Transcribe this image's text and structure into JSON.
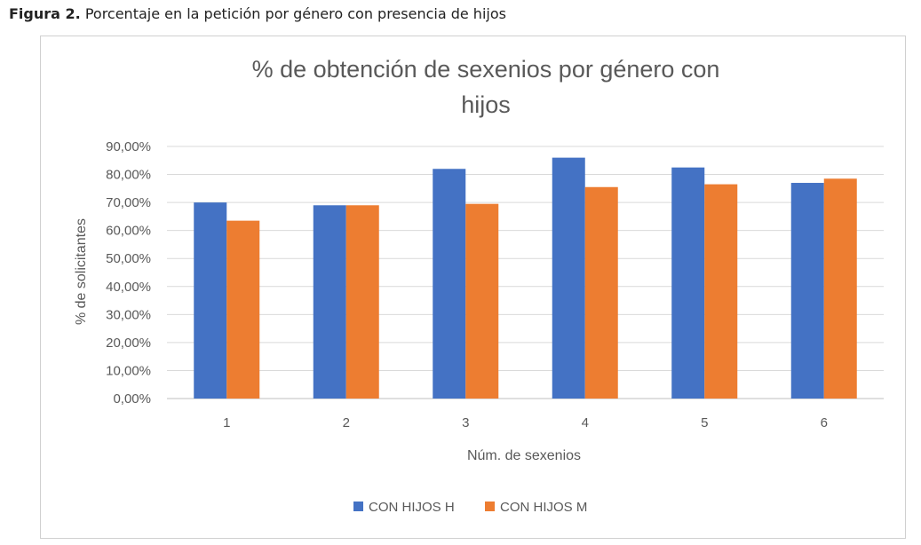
{
  "caption": {
    "bold": "Figura 2.",
    "text": " Porcentaje en la petición por género con presencia de hijos"
  },
  "chart_data": {
    "type": "bar",
    "title_lines": [
      "% de obtención de sexenios por género con",
      "hijos"
    ],
    "xlabel": "Núm. de sexenios",
    "ylabel": "% de solicitantes",
    "categories": [
      "1",
      "2",
      "3",
      "4",
      "5",
      "6"
    ],
    "ylim": [
      0,
      90
    ],
    "y_tick_step": 10,
    "y_tick_labels": [
      "0,00%",
      "10,00%",
      "20,00%",
      "30,00%",
      "40,00%",
      "50,00%",
      "60,00%",
      "70,00%",
      "80,00%",
      "90,00%"
    ],
    "grid": true,
    "legend_position": "bottom",
    "series": [
      {
        "name": "CON HIJOS H",
        "color": "#4472C4",
        "values": [
          70.0,
          69.0,
          82.0,
          86.0,
          82.5,
          77.0
        ]
      },
      {
        "name": "CON HIJOS M",
        "color": "#ED7D31",
        "values": [
          63.5,
          69.0,
          69.5,
          75.5,
          76.5,
          78.5
        ]
      }
    ]
  }
}
